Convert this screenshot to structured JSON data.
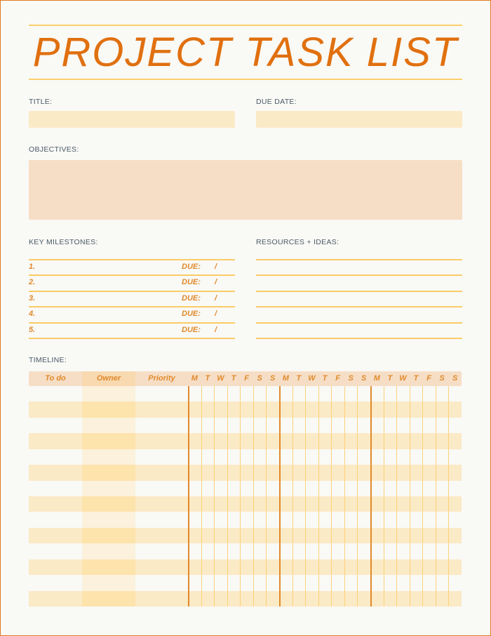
{
  "header": {
    "title": "PROJECT TASK LIST"
  },
  "fields": {
    "title_label": "TITLE:",
    "due_date_label": "DUE DATE:",
    "objectives_label": "OBJECTIVES:"
  },
  "milestones": {
    "label": "KEY MILESTONES:",
    "due_label": "DUE:",
    "slash": "/",
    "items": [
      "1.",
      "2.",
      "3.",
      "4.",
      "5."
    ]
  },
  "resources": {
    "label": "RESOURCES + IDEAS:"
  },
  "timeline": {
    "label": "TIMELINE:",
    "columns": [
      "To do",
      "Owner",
      "Priority"
    ],
    "days": [
      "M",
      "T",
      "W",
      "T",
      "F",
      "S",
      "S",
      "M",
      "T",
      "W",
      "T",
      "F",
      "S",
      "S",
      "M",
      "T",
      "W",
      "T",
      "F",
      "S",
      "S"
    ],
    "row_count": 14
  },
  "colors": {
    "accent": "#e0700f",
    "line": "#fbcc66",
    "field": "#fbeac6",
    "objectives": "#f6dec6",
    "header_row": "#f6dec6",
    "stripe": "#fbeac6"
  }
}
